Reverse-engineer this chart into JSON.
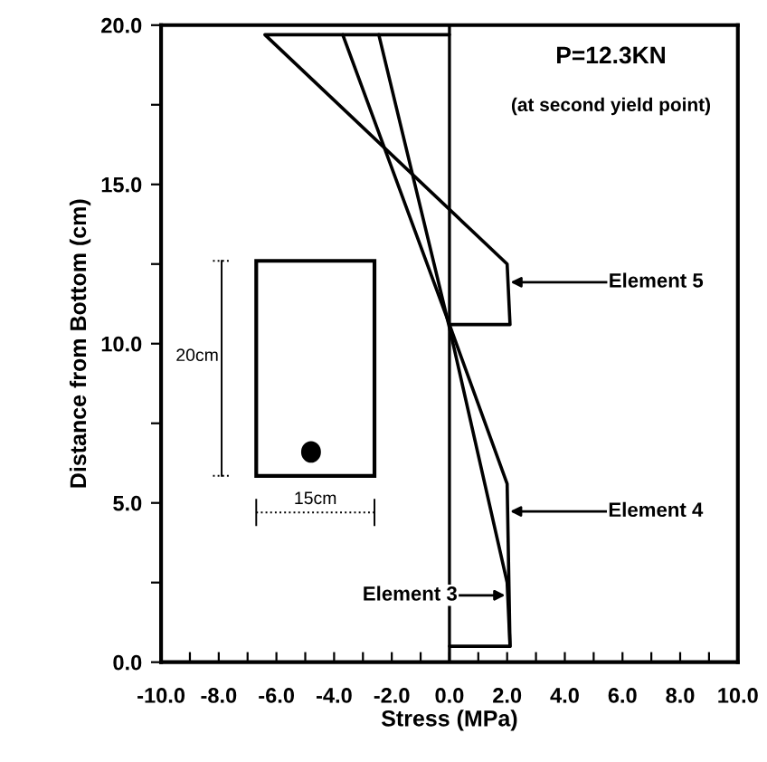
{
  "chart_data": {
    "type": "line",
    "xlabel": "Stress (MPa)",
    "ylabel": "Distance from Bottom (cm)",
    "xlim": [
      -10,
      10
    ],
    "ylim": [
      0,
      20
    ],
    "xticks": [
      {
        "value": -10,
        "label": "-10.0"
      },
      {
        "value": -9,
        "label": null
      },
      {
        "value": -8,
        "label": "-8.0"
      },
      {
        "value": -7,
        "label": null
      },
      {
        "value": -6,
        "label": "-6.0"
      },
      {
        "value": -5,
        "label": null
      },
      {
        "value": -4,
        "label": "-4.0"
      },
      {
        "value": -3,
        "label": null
      },
      {
        "value": -2,
        "label": "-2.0"
      },
      {
        "value": -1,
        "label": null
      },
      {
        "value": 0,
        "label": "0.0"
      },
      {
        "value": 1,
        "label": null
      },
      {
        "value": 2,
        "label": "2.0"
      },
      {
        "value": 3,
        "label": null
      },
      {
        "value": 4,
        "label": "4.0"
      },
      {
        "value": 5,
        "label": null
      },
      {
        "value": 6,
        "label": "6.0"
      },
      {
        "value": 7,
        "label": null
      },
      {
        "value": 8,
        "label": "8.0"
      },
      {
        "value": 9,
        "label": null
      },
      {
        "value": 10,
        "label": "10.0"
      }
    ],
    "yticks": [
      {
        "value": 0,
        "label": "0.0"
      },
      {
        "value": 2.5,
        "label": null
      },
      {
        "value": 5,
        "label": "5.0"
      },
      {
        "value": 7.5,
        "label": null
      },
      {
        "value": 10,
        "label": "10.0"
      },
      {
        "value": 12.5,
        "label": null
      },
      {
        "value": 15,
        "label": "15.0"
      },
      {
        "value": 17.5,
        "label": null
      },
      {
        "value": 20,
        "label": "20.0"
      }
    ],
    "series": [
      {
        "name": "Element 5",
        "color": "#000000",
        "x": [
          0,
          -6.4,
          2.0,
          2.1,
          0
        ],
        "values": [
          19.7,
          19.7,
          12.5,
          10.6,
          10.6
        ]
      },
      {
        "name": "Element 4",
        "color": "#000000",
        "x": [
          -3.7,
          0,
          2.0,
          2.1,
          0
        ],
        "values": [
          19.7,
          10.6,
          5.6,
          0.5,
          0.5
        ]
      },
      {
        "name": "Element 3",
        "color": "#000000",
        "x": [
          -2.45,
          0,
          2.0,
          2.1
        ],
        "values": [
          19.7,
          10.5,
          2.5,
          0.5
        ]
      }
    ],
    "ref_lines": [
      {
        "axis": "x",
        "value": 0,
        "color": "#000000"
      }
    ],
    "annotations": [
      "P=12.3KN",
      "(at second yield point)",
      "20cm",
      "15cm"
    ],
    "grid": false,
    "legend": "right",
    "marker": "none",
    "line_style": "solid"
  }
}
